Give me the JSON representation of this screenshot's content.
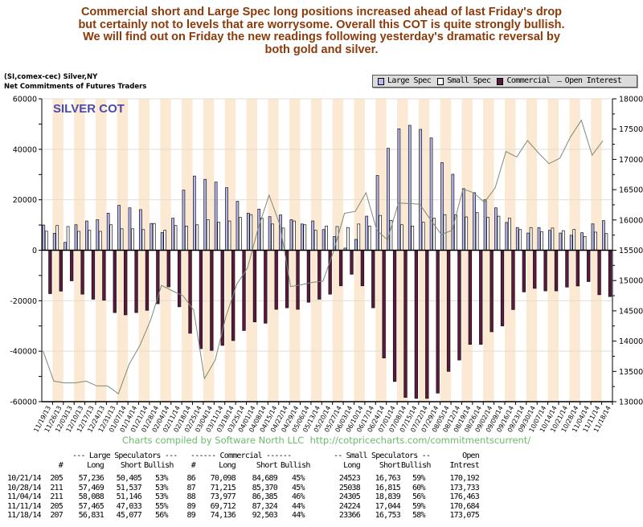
{
  "headline": [
    "Commercial short and Large Spec long positions increased ahead of last Friday's drop",
    "but certainly not to levels that are worrysome. Overall this COT is quite strongly bullish.",
    "We will find out on Friday the new readings following yesterday's dramatic reversal by",
    "both gold and silver."
  ],
  "source": {
    "line1": "(SI,comex-cec) Silver,NY",
    "line2": "Net Commitments of Futures Traders"
  },
  "legend": [
    {
      "label": "Large Spec",
      "color": "#b8b8f0"
    },
    {
      "label": "Small Spec",
      "color": "#ffffff"
    },
    {
      "label": "Commercial",
      "color": "#5a1a40"
    },
    {
      "label": "Open Interest",
      "color": "#7a8a7a"
    }
  ],
  "footer": "Charts compiled by Software North LLC  http://cotpricecharts.com/commitmentscurrent/",
  "chart_data": {
    "type": "bar",
    "title": "SILVER COT",
    "title_color": "#4a4aa8",
    "x": [
      "11/19/13",
      "11/26/13",
      "12/03/13",
      "12/10/13",
      "12/17/13",
      "12/24/13",
      "12/31/13",
      "01/07/14",
      "01/14/14",
      "01/21/14",
      "01/28/14",
      "02/04/14",
      "02/11/14",
      "02/18/14",
      "02/25/14",
      "03/04/14",
      "03/11/14",
      "03/18/14",
      "03/25/14",
      "04/01/14",
      "04/08/14",
      "04/15/14",
      "04/22/14",
      "04/29/14",
      "05/06/14",
      "05/13/14",
      "05/20/14",
      "05/27/14",
      "06/03/14",
      "06/10/14",
      "06/17/14",
      "06/24/14",
      "07/01/14",
      "07/08/14",
      "07/15/14",
      "07/22/14",
      "07/29/14",
      "08/05/14",
      "08/12/14",
      "08/19/14",
      "08/26/14",
      "09/02/14",
      "09/09/14",
      "09/16/14",
      "09/23/14",
      "09/30/14",
      "10/07/14",
      "10/14/14",
      "10/21/14",
      "10/28/14",
      "11/04/14",
      "11/11/14",
      "11/18/14"
    ],
    "series": [
      {
        "name": "Large Spec",
        "axis": "left",
        "kind": "bar",
        "color": "#b8b8f0",
        "values": [
          10000,
          6700,
          3100,
          10100,
          11600,
          12100,
          14700,
          17800,
          16800,
          16100,
          10600,
          7000,
          12700,
          23800,
          29400,
          28100,
          27000,
          24800,
          19400,
          14700,
          16300,
          13300,
          14000,
          12100,
          10400,
          11600,
          8200,
          5400,
          850,
          4300,
          13500,
          29600,
          40400,
          48100,
          49500,
          47900,
          44500,
          34700,
          30100,
          24400,
          22800,
          20000,
          16800,
          11000,
          9000,
          6800,
          9000,
          7900,
          6831,
          5932,
          6942,
          10432,
          11754
        ]
      },
      {
        "name": "Small Spec",
        "axis": "left",
        "kind": "bar",
        "color": "#ffffff",
        "values": [
          7550,
          9800,
          9400,
          7500,
          7900,
          7500,
          10100,
          8500,
          8500,
          8200,
          10600,
          7900,
          9800,
          9600,
          10100,
          12100,
          11100,
          11600,
          13000,
          14100,
          12700,
          10400,
          8800,
          11600,
          10100,
          7900,
          9600,
          9400,
          9000,
          10400,
          9600,
          13800,
          11800,
          10100,
          9600,
          11100,
          12700,
          14100,
          14100,
          13200,
          14900,
          13000,
          13500,
          12700,
          8200,
          9000,
          7300,
          8800,
          7760,
          8223,
          5466,
          7180,
          6613
        ]
      },
      {
        "name": "Commercial",
        "axis": "left",
        "kind": "bar",
        "color": "#5a1a40",
        "values": [
          -17200,
          -16200,
          -12100,
          -17400,
          -19400,
          -19800,
          -24700,
          -25600,
          -24700,
          -23800,
          -21200,
          -14500,
          -22400,
          -32900,
          -39000,
          -39700,
          -37700,
          -35800,
          -31800,
          -28400,
          -28900,
          -23400,
          -22800,
          -23400,
          -20600,
          -19400,
          -17400,
          -14100,
          -9500,
          -14100,
          -22800,
          -42700,
          -52000,
          -58300,
          -58700,
          -58700,
          -56600,
          -48000,
          -43500,
          -37300,
          -37300,
          -32300,
          -30000,
          -23500,
          -16500,
          -15100,
          -16100,
          -16100,
          -14591,
          -14155,
          -12408,
          -17612,
          -18367
        ]
      },
      {
        "name": "Open Interest",
        "axis": "right",
        "kind": "line",
        "color": "#7a8a7a",
        "values": [
          138400,
          133400,
          133100,
          133100,
          133400,
          132600,
          132600,
          131300,
          136200,
          139300,
          143500,
          149200,
          148300,
          147500,
          145100,
          133800,
          136900,
          144100,
          149400,
          152100,
          158700,
          164100,
          159200,
          149000,
          149300,
          149700,
          149900,
          154900,
          161100,
          161400,
          164500,
          158300,
          156700,
          162800,
          162700,
          162600,
          160000,
          157600,
          158300,
          165100,
          164500,
          162900,
          165300,
          171300,
          170400,
          173100,
          171100,
          169300,
          170192,
          173733,
          176463,
          170684,
          173075
        ]
      }
    ],
    "ylim": [
      -60000,
      60000
    ],
    "yticks": [
      "60000",
      "40000",
      "20000",
      "0",
      "-20000",
      "-40000",
      "-60000"
    ],
    "y2lim": [
      130000,
      180000
    ],
    "y2ticks": [
      "180000",
      "175000",
      "170000",
      "165000",
      "160000",
      "155000",
      "150000",
      "145000",
      "140000",
      "135000",
      "130000"
    ],
    "grid": true,
    "stripe_color": "#fce9d3",
    "legend_position": "top-right"
  },
  "table": {
    "group_headers": {
      "large": "--- Large Speculators ---",
      "commercial": "------ Commercial ------",
      "small": "-- Small Speculators --",
      "oi": "Open"
    },
    "col_headers": {
      "ls_num": "#",
      "ls_long": "Long",
      "ls_short": "Short",
      "ls_bull": "Bullish",
      "c_num": "#",
      "c_long": "Long",
      "c_short": "Short",
      "c_bull": "Bullish",
      "s_long": "Long",
      "s_short": "Short",
      "s_bull": "Bullish",
      "oi": "Intrest"
    },
    "rows": [
      {
        "date": "10/21/14",
        "ls_num": "205",
        "ls_long": "57,236",
        "ls_short": "50,405",
        "ls_bull": "53%",
        "c_num": "86",
        "c_long": "70,098",
        "c_short": "84,689",
        "c_bull": "45%",
        "s_long": "24523",
        "s_short": "16,763",
        "s_bull": "59%",
        "oi": "170,192"
      },
      {
        "date": "10/28/14",
        "ls_num": "211",
        "ls_long": "57,469",
        "ls_short": "51,537",
        "ls_bull": "53%",
        "c_num": "87",
        "c_long": "71,215",
        "c_short": "85,370",
        "c_bull": "45%",
        "s_long": "25038",
        "s_short": "16,815",
        "s_bull": "60%",
        "oi": "173,733"
      },
      {
        "date": "11/04/14",
        "ls_num": "211",
        "ls_long": "58,088",
        "ls_short": "51,146",
        "ls_bull": "53%",
        "c_num": "88",
        "c_long": "73,977",
        "c_short": "86,385",
        "c_bull": "46%",
        "s_long": "24305",
        "s_short": "18,839",
        "s_bull": "56%",
        "oi": "176,463"
      },
      {
        "date": "11/11/14",
        "ls_num": "205",
        "ls_long": "57,465",
        "ls_short": "47,033",
        "ls_bull": "55%",
        "c_num": "89",
        "c_long": "69,712",
        "c_short": "87,324",
        "c_bull": "44%",
        "s_long": "24224",
        "s_short": "17,044",
        "s_bull": "59%",
        "oi": "170,684"
      },
      {
        "date": "11/18/14",
        "ls_num": "207",
        "ls_long": "56,831",
        "ls_short": "45,077",
        "ls_bull": "56%",
        "c_num": "89",
        "c_long": "74,136",
        "c_short": "92,503",
        "c_bull": "44%",
        "s_long": "23366",
        "s_short": "16,753",
        "s_bull": "58%",
        "oi": "173,075"
      }
    ]
  }
}
